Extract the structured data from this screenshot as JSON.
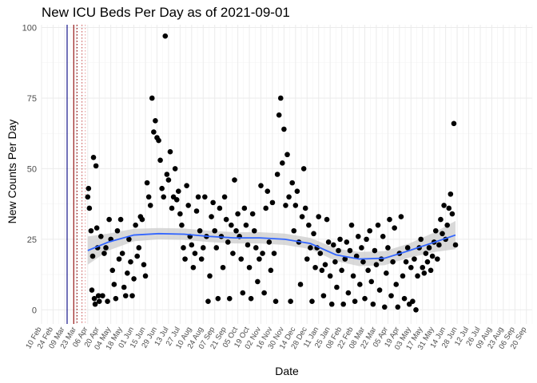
{
  "chart_data": {
    "type": "scatter",
    "title": "New ICU Beds Per Day as of 2021-09-01",
    "xlabel": "Date",
    "ylabel": "New Counts Per Day",
    "xlim": [
      "2020-02-10",
      "2021-09-27"
    ],
    "ylim": [
      -5,
      101
    ],
    "y_ticks": [
      0,
      25,
      50,
      75,
      100
    ],
    "x_tick_dates": [
      "2020-02-10",
      "2020-02-24",
      "2020-03-09",
      "2020-03-23",
      "2020-04-06",
      "2020-04-20",
      "2020-05-04",
      "2020-05-18",
      "2020-06-01",
      "2020-06-15",
      "2020-06-29",
      "2020-07-13",
      "2020-07-27",
      "2020-08-10",
      "2020-08-24",
      "2020-09-07",
      "2020-09-21",
      "2020-10-05",
      "2020-10-19",
      "2020-11-02",
      "2020-11-16",
      "2020-11-30",
      "2020-12-14",
      "2020-12-28",
      "2021-01-11",
      "2021-01-25",
      "2021-02-08",
      "2021-02-22",
      "2021-03-08",
      "2021-03-22",
      "2021-04-05",
      "2021-04-19",
      "2021-05-03",
      "2021-05-17",
      "2021-05-31",
      "2021-06-14",
      "2021-06-28",
      "2021-07-12",
      "2021-07-26",
      "2021-08-09",
      "2021-08-23",
      "2021-09-06",
      "2021-09-20"
    ],
    "x_tick_labels": [
      "10 Feb",
      "24 Feb",
      "09 Mar",
      "23 Mar",
      "06 Apr",
      "20 Apr",
      "04 May",
      "18 May",
      "01 Jun",
      "15 Jun",
      "29 Jun",
      "13 Jul",
      "27 Jul",
      "10 Aug",
      "24 Aug",
      "07 Sep",
      "21 Sep",
      "05 Oct",
      "19 Oct",
      "02 Nov",
      "16 Nov",
      "30 Nov",
      "14 Dec",
      "28 Dec",
      "11 Jan",
      "25 Jan",
      "08 Feb",
      "22 Feb",
      "08 Mar",
      "22 Mar",
      "05 Apr",
      "19 Apr",
      "03 May",
      "17 May",
      "31 May",
      "14 Jun",
      "28 Jun",
      "12 Jul",
      "26 Jul",
      "09 Aug",
      "23 Aug",
      "06 Sep",
      "20 Sep"
    ],
    "grid": true,
    "reference_lines": [
      {
        "date": "2020-03-12",
        "color": "#000080",
        "style": "solid"
      },
      {
        "date": "2020-03-20",
        "color": "#8b0000",
        "style": "solid"
      },
      {
        "date": "2020-03-24",
        "color": "#8b0000",
        "style": "dotted"
      },
      {
        "date": "2020-03-30",
        "color": "#cd5c5c",
        "style": "dotted"
      },
      {
        "date": "2020-04-03",
        "color": "#e8a0a0",
        "style": "dotted"
      }
    ],
    "series": [
      {
        "type": "scatter",
        "color": "#000000",
        "points": [
          [
            "2020-04-06",
            40
          ],
          [
            "2020-04-07",
            43
          ],
          [
            "2020-04-08",
            36
          ],
          [
            "2020-04-10",
            28
          ],
          [
            "2020-04-11",
            7
          ],
          [
            "2020-04-12",
            19
          ],
          [
            "2020-04-13",
            54
          ],
          [
            "2020-04-14",
            4
          ],
          [
            "2020-04-15",
            2
          ],
          [
            "2020-04-16",
            51
          ],
          [
            "2020-04-17",
            29
          ],
          [
            "2020-04-18",
            22
          ],
          [
            "2020-04-19",
            5
          ],
          [
            "2020-04-20",
            3
          ],
          [
            "2020-04-22",
            26
          ],
          [
            "2020-04-24",
            5
          ],
          [
            "2020-04-26",
            20
          ],
          [
            "2020-04-28",
            22
          ],
          [
            "2020-04-30",
            3
          ],
          [
            "2020-05-02",
            32
          ],
          [
            "2020-05-04",
            25
          ],
          [
            "2020-05-06",
            14
          ],
          [
            "2020-05-08",
            9
          ],
          [
            "2020-05-10",
            4
          ],
          [
            "2020-05-12",
            28
          ],
          [
            "2020-05-14",
            18
          ],
          [
            "2020-05-16",
            32
          ],
          [
            "2020-05-18",
            20
          ],
          [
            "2020-05-20",
            8
          ],
          [
            "2020-05-22",
            5
          ],
          [
            "2020-05-24",
            13
          ],
          [
            "2020-05-26",
            25
          ],
          [
            "2020-05-28",
            17
          ],
          [
            "2020-05-30",
            5
          ],
          [
            "2020-06-01",
            11
          ],
          [
            "2020-06-03",
            30
          ],
          [
            "2020-06-05",
            19
          ],
          [
            "2020-06-07",
            22
          ],
          [
            "2020-06-09",
            33
          ],
          [
            "2020-06-11",
            32
          ],
          [
            "2020-06-13",
            16
          ],
          [
            "2020-06-15",
            12
          ],
          [
            "2020-06-17",
            45
          ],
          [
            "2020-06-19",
            40
          ],
          [
            "2020-06-21",
            37
          ],
          [
            "2020-06-23",
            75
          ],
          [
            "2020-06-25",
            63
          ],
          [
            "2020-06-27",
            67
          ],
          [
            "2020-06-29",
            61
          ],
          [
            "2020-07-01",
            60
          ],
          [
            "2020-07-03",
            53
          ],
          [
            "2020-07-05",
            43
          ],
          [
            "2020-07-07",
            40
          ],
          [
            "2020-07-09",
            97
          ],
          [
            "2020-07-11",
            48
          ],
          [
            "2020-07-13",
            46
          ],
          [
            "2020-07-15",
            56
          ],
          [
            "2020-07-17",
            36
          ],
          [
            "2020-07-19",
            40
          ],
          [
            "2020-07-21",
            50
          ],
          [
            "2020-07-23",
            39
          ],
          [
            "2020-07-25",
            42
          ],
          [
            "2020-07-27",
            34
          ],
          [
            "2020-07-29",
            30
          ],
          [
            "2020-07-31",
            22
          ],
          [
            "2020-08-02",
            18
          ],
          [
            "2020-08-04",
            44
          ],
          [
            "2020-08-06",
            37
          ],
          [
            "2020-08-08",
            26
          ],
          [
            "2020-08-10",
            23
          ],
          [
            "2020-08-12",
            15
          ],
          [
            "2020-08-14",
            20
          ],
          [
            "2020-08-16",
            35
          ],
          [
            "2020-08-18",
            40
          ],
          [
            "2020-08-20",
            28
          ],
          [
            "2020-08-22",
            18
          ],
          [
            "2020-08-24",
            22
          ],
          [
            "2020-08-26",
            40
          ],
          [
            "2020-08-28",
            26
          ],
          [
            "2020-08-30",
            3
          ],
          [
            "2020-09-01",
            12
          ],
          [
            "2020-09-03",
            33
          ],
          [
            "2020-09-05",
            38
          ],
          [
            "2020-09-07",
            28
          ],
          [
            "2020-09-09",
            22
          ],
          [
            "2020-09-11",
            4
          ],
          [
            "2020-09-13",
            36
          ],
          [
            "2020-09-15",
            26
          ],
          [
            "2020-09-17",
            15
          ],
          [
            "2020-09-19",
            40
          ],
          [
            "2020-09-21",
            32
          ],
          [
            "2020-09-23",
            24
          ],
          [
            "2020-09-25",
            4
          ],
          [
            "2020-09-27",
            30
          ],
          [
            "2020-09-29",
            20
          ],
          [
            "2020-10-01",
            46
          ],
          [
            "2020-10-03",
            28
          ],
          [
            "2020-10-05",
            34
          ],
          [
            "2020-10-07",
            26
          ],
          [
            "2020-10-09",
            18
          ],
          [
            "2020-10-11",
            6
          ],
          [
            "2020-10-13",
            36
          ],
          [
            "2020-10-15",
            30
          ],
          [
            "2020-10-17",
            23
          ],
          [
            "2020-10-19",
            15
          ],
          [
            "2020-10-21",
            4
          ],
          [
            "2020-10-23",
            34
          ],
          [
            "2020-10-25",
            28
          ],
          [
            "2020-10-27",
            22
          ],
          [
            "2020-10-29",
            10
          ],
          [
            "2020-10-31",
            18
          ],
          [
            "2020-11-02",
            44
          ],
          [
            "2020-11-04",
            20
          ],
          [
            "2020-11-06",
            6
          ],
          [
            "2020-11-08",
            36
          ],
          [
            "2020-11-10",
            42
          ],
          [
            "2020-11-12",
            24
          ],
          [
            "2020-11-14",
            14
          ],
          [
            "2020-11-16",
            38
          ],
          [
            "2020-11-18",
            20
          ],
          [
            "2020-11-20",
            3
          ],
          [
            "2020-11-22",
            48
          ],
          [
            "2020-11-24",
            69
          ],
          [
            "2020-11-26",
            75
          ],
          [
            "2020-11-28",
            52
          ],
          [
            "2020-11-30",
            64
          ],
          [
            "2020-12-02",
            37
          ],
          [
            "2020-12-04",
            55
          ],
          [
            "2020-12-06",
            40
          ],
          [
            "2020-12-08",
            3
          ],
          [
            "2020-12-10",
            45
          ],
          [
            "2020-12-12",
            28
          ],
          [
            "2020-12-14",
            37
          ],
          [
            "2020-12-16",
            42
          ],
          [
            "2020-12-18",
            24
          ],
          [
            "2020-12-20",
            9
          ],
          [
            "2020-12-22",
            33
          ],
          [
            "2020-12-24",
            50
          ],
          [
            "2020-12-26",
            36
          ],
          [
            "2020-12-28",
            18
          ],
          [
            "2020-12-30",
            30
          ],
          [
            "2021-01-01",
            22
          ],
          [
            "2021-01-03",
            3
          ],
          [
            "2021-01-05",
            27
          ],
          [
            "2021-01-07",
            15
          ],
          [
            "2021-01-09",
            22
          ],
          [
            "2021-01-11",
            33
          ],
          [
            "2021-01-13",
            20
          ],
          [
            "2021-01-15",
            14
          ],
          [
            "2021-01-17",
            5
          ],
          [
            "2021-01-19",
            16
          ],
          [
            "2021-01-21",
            32
          ],
          [
            "2021-01-23",
            24
          ],
          [
            "2021-01-25",
            12
          ],
          [
            "2021-01-27",
            2
          ],
          [
            "2021-01-29",
            23
          ],
          [
            "2021-01-31",
            17
          ],
          [
            "2021-02-02",
            8
          ],
          [
            "2021-02-04",
            21
          ],
          [
            "2021-02-06",
            25
          ],
          [
            "2021-02-08",
            14
          ],
          [
            "2021-02-10",
            2
          ],
          [
            "2021-02-12",
            18
          ],
          [
            "2021-02-14",
            24
          ],
          [
            "2021-02-16",
            6
          ],
          [
            "2021-02-18",
            21
          ],
          [
            "2021-02-20",
            30
          ],
          [
            "2021-02-22",
            12
          ],
          [
            "2021-02-24",
            3
          ],
          [
            "2021-02-26",
            19
          ],
          [
            "2021-02-28",
            26
          ],
          [
            "2021-03-02",
            9
          ],
          [
            "2021-03-04",
            22
          ],
          [
            "2021-03-06",
            17
          ],
          [
            "2021-03-08",
            4
          ],
          [
            "2021-03-10",
            25
          ],
          [
            "2021-03-12",
            14
          ],
          [
            "2021-03-14",
            28
          ],
          [
            "2021-03-16",
            10
          ],
          [
            "2021-03-18",
            2
          ],
          [
            "2021-03-20",
            21
          ],
          [
            "2021-03-22",
            16
          ],
          [
            "2021-03-24",
            30
          ],
          [
            "2021-03-26",
            7
          ],
          [
            "2021-03-28",
            18
          ],
          [
            "2021-03-30",
            26
          ],
          [
            "2021-04-01",
            1
          ],
          [
            "2021-04-03",
            13
          ],
          [
            "2021-04-05",
            22
          ],
          [
            "2021-04-07",
            32
          ],
          [
            "2021-04-09",
            5
          ],
          [
            "2021-04-11",
            17
          ],
          [
            "2021-04-13",
            29
          ],
          [
            "2021-04-15",
            9
          ],
          [
            "2021-04-17",
            1
          ],
          [
            "2021-04-19",
            20
          ],
          [
            "2021-04-21",
            33
          ],
          [
            "2021-04-23",
            12
          ],
          [
            "2021-04-25",
            4
          ],
          [
            "2021-04-27",
            17
          ],
          [
            "2021-04-29",
            22
          ],
          [
            "2021-05-01",
            2
          ],
          [
            "2021-05-03",
            15
          ],
          [
            "2021-05-05",
            3
          ],
          [
            "2021-05-07",
            18
          ],
          [
            "2021-05-09",
            0
          ],
          [
            "2021-05-11",
            12
          ],
          [
            "2021-05-13",
            22
          ],
          [
            "2021-05-15",
            25
          ],
          [
            "2021-05-17",
            15
          ],
          [
            "2021-05-19",
            13
          ],
          [
            "2021-05-21",
            20
          ],
          [
            "2021-05-23",
            17
          ],
          [
            "2021-05-25",
            22
          ],
          [
            "2021-05-27",
            14
          ],
          [
            "2021-05-29",
            19
          ],
          [
            "2021-05-31",
            24
          ],
          [
            "2021-06-02",
            28
          ],
          [
            "2021-06-04",
            18
          ],
          [
            "2021-06-06",
            23
          ],
          [
            "2021-06-08",
            32
          ],
          [
            "2021-06-10",
            27
          ],
          [
            "2021-06-12",
            37
          ],
          [
            "2021-06-14",
            25
          ],
          [
            "2021-06-16",
            30
          ],
          [
            "2021-06-18",
            36
          ],
          [
            "2021-06-20",
            41
          ],
          [
            "2021-06-22",
            34
          ],
          [
            "2021-06-24",
            66
          ],
          [
            "2021-06-26",
            23
          ]
        ]
      }
    ],
    "trend": {
      "type": "smooth",
      "color": "#3366ff",
      "band_color": "#cccccc",
      "points": [
        [
          "2020-04-06",
          21
        ],
        [
          "2020-05-01",
          24
        ],
        [
          "2020-06-01",
          26.5
        ],
        [
          "2020-07-01",
          27
        ],
        [
          "2020-08-01",
          26.8
        ],
        [
          "2020-09-01",
          26
        ],
        [
          "2020-10-01",
          25.5
        ],
        [
          "2020-11-01",
          25.5
        ],
        [
          "2020-12-01",
          25
        ],
        [
          "2021-01-01",
          23.5
        ],
        [
          "2021-02-01",
          19.5
        ],
        [
          "2021-03-01",
          18
        ],
        [
          "2021-04-01",
          18.3
        ],
        [
          "2021-05-01",
          21
        ],
        [
          "2021-06-01",
          24
        ],
        [
          "2021-06-26",
          26.5
        ]
      ],
      "band_half_width": [
        5,
        3,
        2.2,
        2,
        2,
        2,
        2,
        2,
        2,
        2,
        2.2,
        2.5,
        2.5,
        2.5,
        3.5,
        5
      ]
    }
  }
}
